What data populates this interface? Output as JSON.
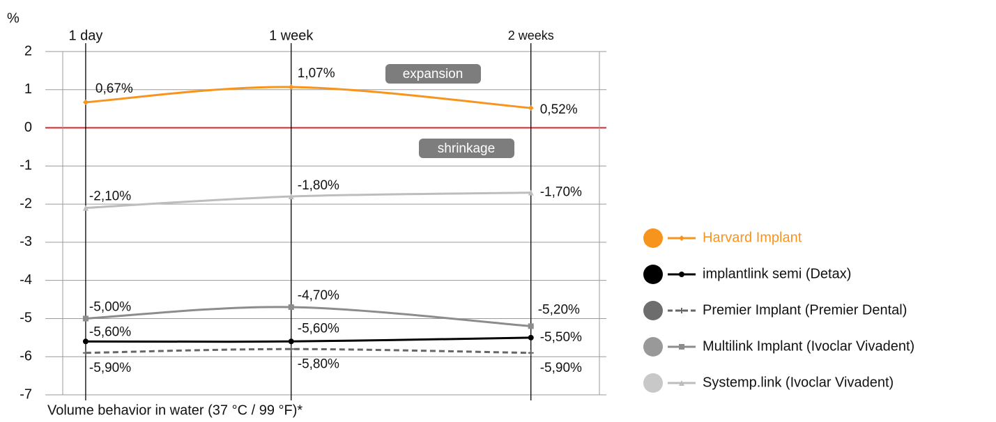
{
  "chart_data": {
    "type": "line",
    "y_axis_label": "%",
    "footnote": "Volume behavior in water (37 °C / 99 °F)*",
    "annotations": [
      "expansion",
      "shrinkage"
    ],
    "x": [
      1,
      7,
      14
    ],
    "xlim": [
      0.33,
      16
    ],
    "xticks": [
      {
        "value": 1,
        "label": "1 day"
      },
      {
        "value": 7,
        "label": "1 week"
      },
      {
        "value": 14,
        "label": "2 weeks"
      }
    ],
    "ylim": [
      -7,
      2
    ],
    "yticks": [
      -7,
      -6,
      -5,
      -4,
      -3,
      -2,
      -1,
      0,
      1,
      2
    ],
    "grid": true,
    "zero_line_color": "#d7262b",
    "legend": "right",
    "series": [
      {
        "name": "Harvard Implant",
        "color": "#f7941d",
        "marker": "diamond",
        "dash": false,
        "values": [
          0.67,
          1.07,
          0.52
        ],
        "value_labels": [
          "0,67%",
          "1,07%",
          "0,52%"
        ]
      },
      {
        "name": "implantlink semi (Detax)",
        "color": "#000000",
        "marker": "circle",
        "dash": false,
        "values": [
          -5.6,
          -5.6,
          -5.5
        ],
        "value_labels": [
          "-5,60%",
          "-5,60%",
          "-5,50%"
        ]
      },
      {
        "name": "Premier Implant (Premier Dental)",
        "color": "#666666",
        "marker": "plus",
        "dash": true,
        "values": [
          -5.9,
          -5.8,
          -5.9
        ],
        "value_labels": [
          "-5,90%",
          "-5,80%",
          "-5,90%"
        ]
      },
      {
        "name": "Multilink Implant (Ivoclar Vivadent)",
        "color": "#8c8c8c",
        "marker": "square",
        "dash": false,
        "values": [
          -5.0,
          -4.7,
          -5.2
        ],
        "value_labels": [
          "-5,00%",
          "-4,70%",
          "-5,20%"
        ]
      },
      {
        "name": "Systemp.link (Ivoclar Vivadent)",
        "color": "#bdbdbd",
        "marker": "triangle",
        "dash": false,
        "values": [
          -2.1,
          -1.8,
          -1.7
        ],
        "value_labels": [
          "-2,10%",
          "-1,80%",
          "-1,70%"
        ]
      }
    ]
  }
}
